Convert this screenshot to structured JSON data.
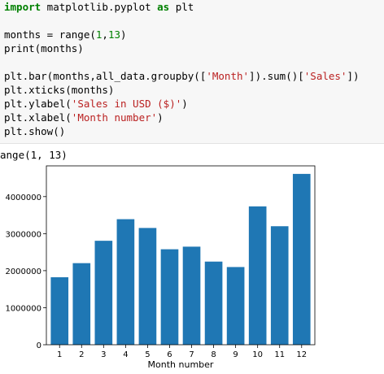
{
  "code": {
    "lines": [
      [
        {
          "t": "import",
          "c": "kw"
        },
        {
          "t": " matplotlib.pyplot "
        },
        {
          "t": "as",
          "c": "kw"
        },
        {
          "t": " plt"
        }
      ],
      [],
      [
        {
          "t": "months = range("
        },
        {
          "t": "1",
          "c": "num"
        },
        {
          "t": ","
        },
        {
          "t": "13",
          "c": "num"
        },
        {
          "t": ")"
        }
      ],
      [
        {
          "t": "print(months)"
        }
      ],
      [],
      [
        {
          "t": "plt.bar(months,all_data.groupby(["
        },
        {
          "t": "'Month'",
          "c": "str"
        },
        {
          "t": "]).sum()["
        },
        {
          "t": "'Sales'",
          "c": "str"
        },
        {
          "t": "])"
        }
      ],
      [
        {
          "t": "plt.xticks(months)"
        }
      ],
      [
        {
          "t": "plt.ylabel("
        },
        {
          "t": "'Sales in USD ($)'",
          "c": "str"
        },
        {
          "t": ")"
        }
      ],
      [
        {
          "t": "plt.xlabel("
        },
        {
          "t": "'Month number'",
          "c": "str"
        },
        {
          "t": ")"
        }
      ],
      [
        {
          "t": "plt.show()"
        }
      ]
    ]
  },
  "output": {
    "print_text": "ange(1, 13)"
  },
  "chart_data": {
    "type": "bar",
    "categories": [
      "1",
      "2",
      "3",
      "4",
      "5",
      "6",
      "7",
      "8",
      "9",
      "10",
      "11",
      "12"
    ],
    "values": [
      1822000,
      2203000,
      2807000,
      3390000,
      3153000,
      2578000,
      2648000,
      2245000,
      2098000,
      3736000,
      3200000,
      4613000
    ],
    "xlabel": "Month number",
    "ylabel": "Sales in USD ($)",
    "ylim": [
      0,
      4830000
    ],
    "yticks": [
      0,
      1000000,
      2000000,
      3000000,
      4000000
    ],
    "ytick_labels": [
      "0",
      "1000000",
      "2000000",
      "3000000",
      "4000000"
    ],
    "bar_color": "#1f77b4",
    "grid": false
  }
}
